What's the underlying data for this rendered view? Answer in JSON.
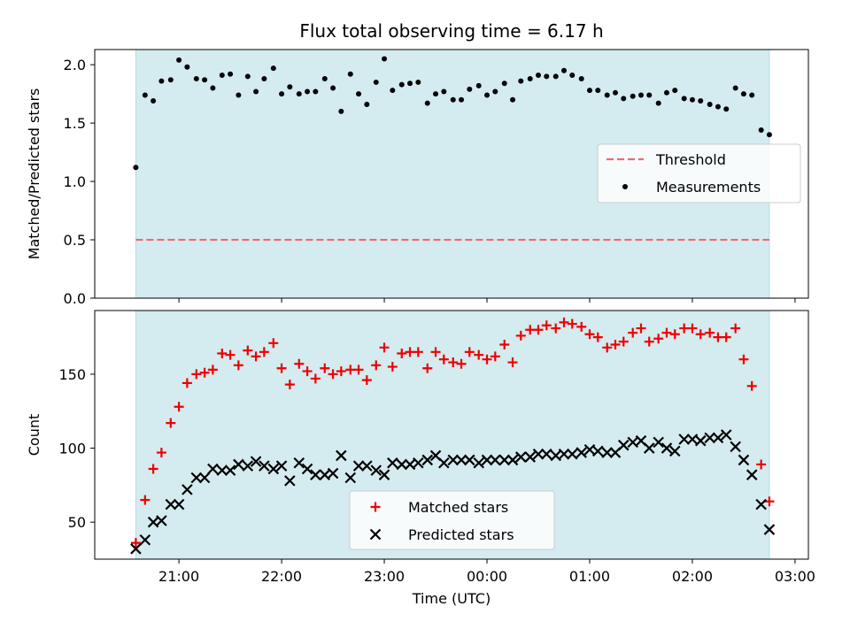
{
  "title": "Flux total observing time = 6.17 h",
  "colors": {
    "shade": "#d4ebf0",
    "threshold": "#ef6a6a",
    "measurements": "#000000",
    "matched": "#ee0000",
    "predicted": "#000000"
  },
  "chart_data": [
    {
      "type": "scatter",
      "name": "ratio-panel",
      "ylabel": "Matched/Predicted stars",
      "ylim": [
        0,
        2.13
      ],
      "yticks": [
        0.0,
        0.5,
        1.0,
        1.5,
        2.0
      ],
      "ytick_labels": [
        "0.0",
        "0.5",
        "1.0",
        "1.5",
        "2.0"
      ],
      "xlim_hours": [
        20.18,
        27.13
      ],
      "shaded_span_hours": [
        20.58,
        26.75
      ],
      "legend": {
        "position": "right",
        "entries": [
          "Threshold",
          "Measurements"
        ]
      },
      "threshold": {
        "name": "Threshold",
        "value": 0.5
      },
      "series": [
        {
          "name": "Measurements",
          "x_hours": [
            20.58,
            20.67,
            20.75,
            20.83,
            20.92,
            21.0,
            21.08,
            21.17,
            21.25,
            21.33,
            21.42,
            21.5,
            21.58,
            21.67,
            21.75,
            21.83,
            21.92,
            22.0,
            22.08,
            22.17,
            22.25,
            22.33,
            22.42,
            22.5,
            22.58,
            22.67,
            22.75,
            22.83,
            22.92,
            23.0,
            23.08,
            23.17,
            23.25,
            23.33,
            23.42,
            23.5,
            23.58,
            23.67,
            23.75,
            23.83,
            23.92,
            24.0,
            24.08,
            24.17,
            24.25,
            24.33,
            24.42,
            24.5,
            24.58,
            24.67,
            24.75,
            24.83,
            24.92,
            25.0,
            25.08,
            25.17,
            25.25,
            25.33,
            25.42,
            25.5,
            25.58,
            25.67,
            25.75,
            25.83,
            25.92,
            26.0,
            26.08,
            26.17,
            26.25,
            26.33,
            26.42,
            26.5,
            26.58,
            26.67,
            26.75
          ],
          "y": [
            1.12,
            1.74,
            1.69,
            1.86,
            1.87,
            2.04,
            1.98,
            1.88,
            1.87,
            1.8,
            1.91,
            1.92,
            1.74,
            1.9,
            1.77,
            1.88,
            1.97,
            1.75,
            1.81,
            1.75,
            1.77,
            1.77,
            1.88,
            1.8,
            1.6,
            1.92,
            1.75,
            1.66,
            1.85,
            2.05,
            1.78,
            1.83,
            1.84,
            1.85,
            1.67,
            1.75,
            1.77,
            1.7,
            1.7,
            1.79,
            1.82,
            1.74,
            1.77,
            1.84,
            1.7,
            1.86,
            1.88,
            1.91,
            1.9,
            1.9,
            1.95,
            1.91,
            1.88,
            1.78,
            1.78,
            1.74,
            1.76,
            1.71,
            1.73,
            1.74,
            1.74,
            1.67,
            1.76,
            1.78,
            1.71,
            1.7,
            1.69,
            1.66,
            1.64,
            1.62,
            1.8,
            1.75,
            1.74,
            1.44,
            1.4
          ]
        }
      ]
    },
    {
      "type": "scatter",
      "name": "count-panel",
      "xlabel": "Time (UTC)",
      "ylabel": "Count",
      "ylim": [
        25,
        193
      ],
      "yticks": [
        50,
        100,
        150
      ],
      "ytick_labels": [
        "50",
        "100",
        "150"
      ],
      "xlim_hours": [
        20.18,
        27.13
      ],
      "xticks_hours": [
        21,
        22,
        23,
        24,
        25,
        26,
        27
      ],
      "xtick_labels": [
        "21:00",
        "22:00",
        "23:00",
        "00:00",
        "01:00",
        "02:00",
        "03:00"
      ],
      "shaded_span_hours": [
        20.58,
        26.75
      ],
      "legend": {
        "position": "bottom-center",
        "entries": [
          "Matched stars",
          "Predicted stars"
        ]
      },
      "series": [
        {
          "name": "Matched stars",
          "marker": "plus",
          "x_hours": [
            20.58,
            20.67,
            20.75,
            20.83,
            20.92,
            21.0,
            21.08,
            21.17,
            21.25,
            21.33,
            21.42,
            21.5,
            21.58,
            21.67,
            21.75,
            21.83,
            21.92,
            22.0,
            22.08,
            22.17,
            22.25,
            22.33,
            22.42,
            22.5,
            22.58,
            22.67,
            22.75,
            22.83,
            22.92,
            23.0,
            23.08,
            23.17,
            23.25,
            23.33,
            23.42,
            23.5,
            23.58,
            23.67,
            23.75,
            23.83,
            23.92,
            24.0,
            24.08,
            24.17,
            24.25,
            24.33,
            24.42,
            24.5,
            24.58,
            24.67,
            24.75,
            24.83,
            24.92,
            25.0,
            25.08,
            25.17,
            25.25,
            25.33,
            25.42,
            25.5,
            25.58,
            25.67,
            25.75,
            25.83,
            25.92,
            26.0,
            26.08,
            26.17,
            26.25,
            26.33,
            26.42,
            26.5,
            26.58,
            26.67,
            26.75
          ],
          "y": [
            36,
            65,
            86,
            97,
            117,
            128,
            144,
            150,
            151,
            153,
            164,
            163,
            156,
            166,
            162,
            165,
            171,
            154,
            143,
            157,
            152,
            147,
            154,
            150,
            152,
            153,
            153,
            146,
            156,
            168,
            155,
            164,
            165,
            165,
            154,
            165,
            160,
            158,
            157,
            165,
            163,
            160,
            162,
            170,
            158,
            176,
            180,
            180,
            183,
            181,
            185,
            184,
            182,
            177,
            175,
            168,
            170,
            172,
            178,
            181,
            172,
            174,
            178,
            177,
            181,
            181,
            177,
            178,
            175,
            175,
            181,
            160,
            142,
            89,
            64
          ]
        },
        {
          "name": "Predicted stars",
          "marker": "x",
          "x_hours": [
            20.58,
            20.67,
            20.75,
            20.83,
            20.92,
            21.0,
            21.08,
            21.17,
            21.25,
            21.33,
            21.42,
            21.5,
            21.58,
            21.67,
            21.75,
            21.83,
            21.92,
            22.0,
            22.08,
            22.17,
            22.25,
            22.33,
            22.42,
            22.5,
            22.58,
            22.67,
            22.75,
            22.83,
            22.92,
            23.0,
            23.08,
            23.17,
            23.25,
            23.33,
            23.42,
            23.5,
            23.58,
            23.67,
            23.75,
            23.83,
            23.92,
            24.0,
            24.08,
            24.17,
            24.25,
            24.33,
            24.42,
            24.5,
            24.58,
            24.67,
            24.75,
            24.83,
            24.92,
            25.0,
            25.08,
            25.17,
            25.25,
            25.33,
            25.42,
            25.5,
            25.58,
            25.67,
            25.75,
            25.83,
            25.92,
            26.0,
            26.08,
            26.17,
            26.25,
            26.33,
            26.42,
            26.5,
            26.58,
            26.67,
            26.75
          ],
          "y": [
            32,
            38,
            50,
            51,
            62,
            62,
            72,
            80,
            80,
            86,
            85,
            85,
            89,
            88,
            91,
            88,
            86,
            88,
            78,
            90,
            86,
            82,
            82,
            83,
            95,
            80,
            88,
            88,
            85,
            82,
            90,
            89,
            89,
            90,
            92,
            95,
            90,
            92,
            92,
            92,
            90,
            92,
            92,
            92,
            92,
            94,
            94,
            96,
            96,
            95,
            96,
            96,
            97,
            99,
            98,
            97,
            97,
            102,
            104,
            105,
            100,
            104,
            100,
            98,
            106,
            106,
            105,
            107,
            107,
            109,
            101,
            92,
            82,
            62,
            45
          ]
        }
      ]
    }
  ]
}
